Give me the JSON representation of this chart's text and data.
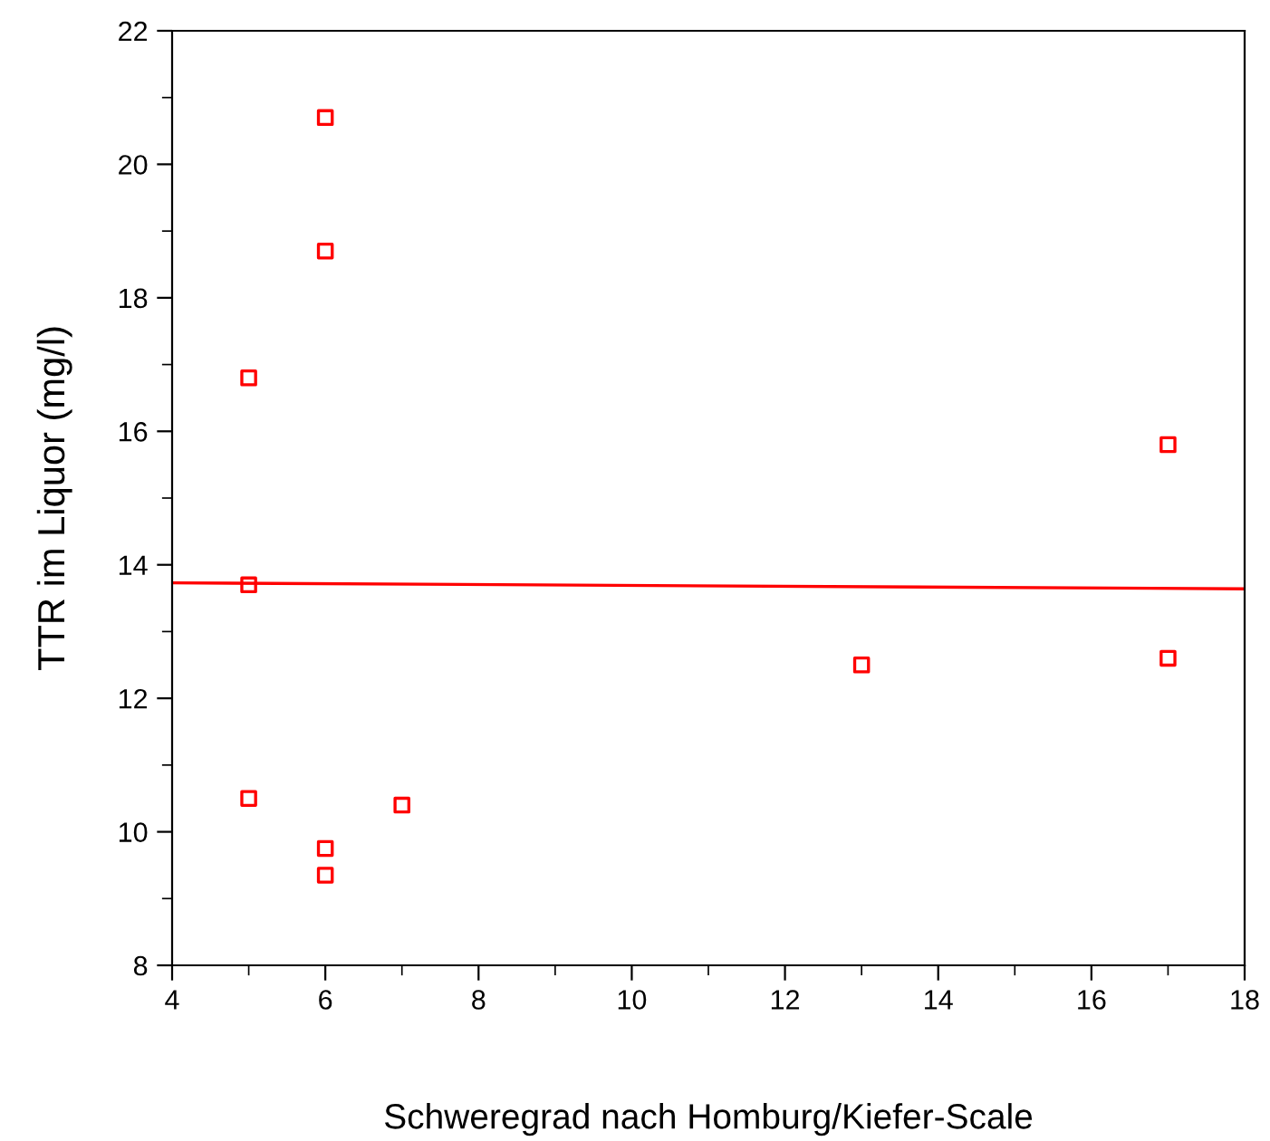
{
  "chart_data": {
    "type": "scatter",
    "xlabel": "Schweregrad nach Homburg/Kiefer-Scale",
    "ylabel": "TTR im Liquor (mg/l)",
    "xlim": [
      4,
      18
    ],
    "xticks": [
      4,
      6,
      8,
      10,
      12,
      14,
      16,
      18
    ],
    "ylim": [
      8,
      22
    ],
    "yticks": [
      8,
      10,
      12,
      14,
      16,
      18,
      20,
      22
    ],
    "grid": false,
    "legend": false,
    "series": [
      {
        "marker": "square",
        "color": "#ff0000",
        "x": [
          6,
          6,
          5,
          5,
          5,
          6,
          6,
          7,
          13,
          17,
          17
        ],
        "values": [
          20.7,
          18.7,
          16.8,
          13.7,
          10.5,
          9.75,
          9.35,
          10.4,
          12.5,
          15.8,
          12.6
        ]
      },
      {
        "type": "line",
        "marker": "none",
        "color": "#ff0000",
        "x": [
          4,
          18
        ],
        "values": [
          13.73,
          13.64
        ]
      }
    ]
  }
}
